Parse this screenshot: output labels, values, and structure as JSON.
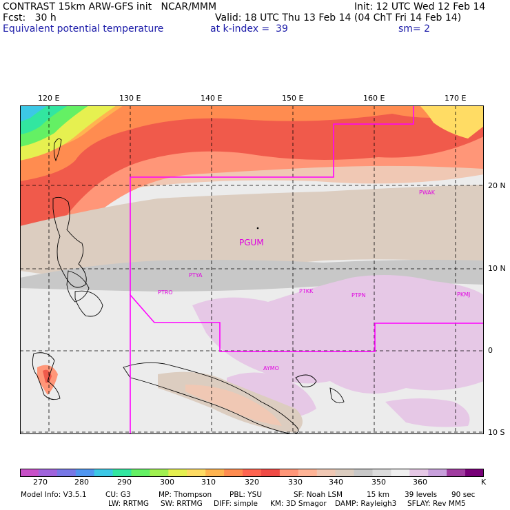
{
  "header": {
    "title": "CONTRAST 15km ARW-GFS init   NCAR/MMM",
    "init": "Init: 12 UTC Wed 12 Feb 14",
    "fcst": "Fcst:   30 h",
    "valid": "Valid: 18 UTC Thu 13 Feb 14 (04 ChT Fri 14 Feb 14)",
    "field": "Equivalent potential temperature",
    "level": "at k-index =  39",
    "smooth": "sm= 2"
  },
  "map": {
    "lon_labels": [
      "120 E",
      "130 E",
      "140 E",
      "150 E",
      "160 E",
      "170 E"
    ],
    "lat_labels": [
      "20 N",
      "10 N",
      "0",
      "10 S"
    ],
    "stations": [
      "PGUM",
      "PWAK",
      "PTYA",
      "PTRO",
      "PTKK",
      "PTPN",
      "PKMJ",
      "AYMO"
    ],
    "boundary_color": "#ff00ff",
    "station_color": "#e000e0"
  },
  "colorbar": {
    "labels": [
      "270",
      "280",
      "290",
      "300",
      "310",
      "320",
      "330",
      "340",
      "350",
      "360",
      "K"
    ],
    "colors": [
      "#c850c8",
      "#a064dc",
      "#7878e6",
      "#5096f0",
      "#3cc8e6",
      "#32e6a0",
      "#64f064",
      "#a0f050",
      "#e6f050",
      "#ffdc64",
      "#ffb450",
      "#ff8c50",
      "#ff6450",
      "#f04b46",
      "#ff9678",
      "#ffb496",
      "#f0c8b4",
      "#dccdc0",
      "#c8c8c8",
      "#dcdcdc",
      "#f0f0f0",
      "#e6c8e6",
      "#c8a0dc",
      "#a03ca0",
      "#780078"
    ]
  },
  "model_info": {
    "line1": [
      "Model Info: V3.5.1",
      "CU: G3",
      "MP: Thompson",
      "PBL: YSU",
      "SF: Noah LSM",
      "15 km",
      "39 levels",
      "90 sec"
    ],
    "line2": [
      "LW: RRTMG",
      "SW: RRTMG",
      "DIFF: simple",
      "KM: 3D Smagor",
      "DAMP: Rayleigh3",
      "SFLAY: Rev MM5"
    ]
  }
}
